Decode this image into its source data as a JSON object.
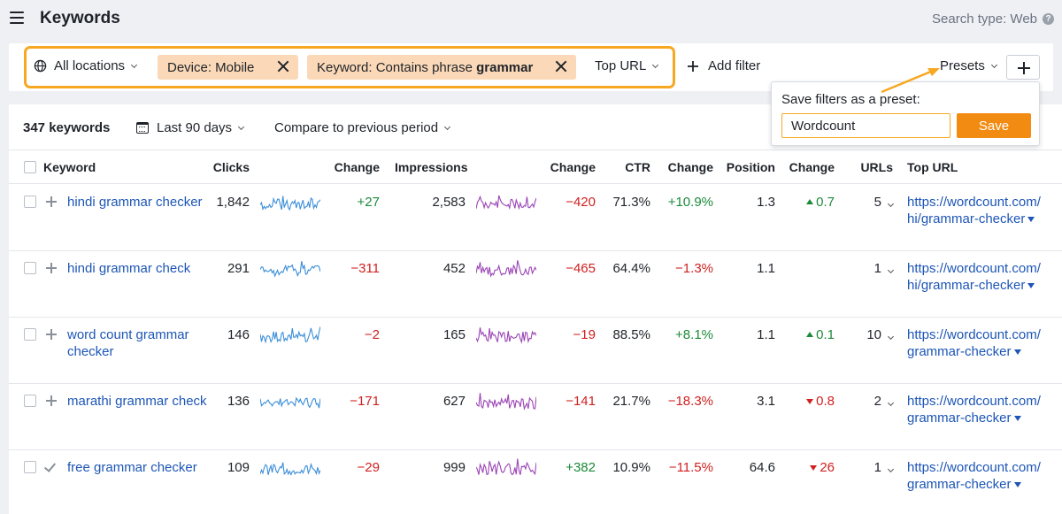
{
  "header": {
    "title": "Keywords",
    "search_type": "Search type: Web",
    "help": "?"
  },
  "filters": {
    "location": "All locations",
    "chip_device": "Device: Mobile",
    "chip_keyword_prefix": "Keyword: Contains phrase ",
    "chip_keyword_term": "grammar",
    "top_url": "Top URL",
    "add_filter": "Add filter",
    "presets": "Presets"
  },
  "summary": {
    "count": "347 keywords",
    "date_range": "Last 90 days",
    "compare": "Compare to previous period"
  },
  "columns": {
    "keyword": "Keyword",
    "clicks": "Clicks",
    "change1": "Change",
    "impressions": "Impressions",
    "change2": "Change",
    "ctr": "CTR",
    "change3": "Change",
    "position": "Position",
    "change4": "Change",
    "urls": "URLs",
    "top_url": "Top URL"
  },
  "rows": [
    {
      "keyword": "hindi grammar checker",
      "clicks": "1,842",
      "clicks_change": "+27",
      "impressions": "2,583",
      "impr_change": "−420",
      "ctr": "71.3%",
      "ctr_change": "+10.9%",
      "position": "1.3",
      "pos_change": "0.7",
      "pos_dir": "up",
      "urls": "5",
      "url": "https://wordcount.com/hi/grammar-checker",
      "checked": false
    },
    {
      "keyword": "hindi grammar check",
      "clicks": "291",
      "clicks_change": "−311",
      "impressions": "452",
      "impr_change": "−465",
      "ctr": "64.4%",
      "ctr_change": "−1.3%",
      "position": "1.1",
      "pos_change": "",
      "pos_dir": "none",
      "urls": "1",
      "url": "https://wordcount.com/hi/grammar-checker",
      "checked": false
    },
    {
      "keyword": "word count grammar checker",
      "clicks": "146",
      "clicks_change": "−2",
      "impressions": "165",
      "impr_change": "−19",
      "ctr": "88.5%",
      "ctr_change": "+8.1%",
      "position": "1.1",
      "pos_change": "0.1",
      "pos_dir": "up",
      "urls": "10",
      "url": "https://wordcount.com/grammar-checker",
      "checked": false
    },
    {
      "keyword": "marathi grammar check",
      "clicks": "136",
      "clicks_change": "−171",
      "impressions": "627",
      "impr_change": "−141",
      "ctr": "21.7%",
      "ctr_change": "−18.3%",
      "position": "3.1",
      "pos_change": "0.8",
      "pos_dir": "down",
      "urls": "2",
      "url": "https://wordcount.com/grammar-checker",
      "checked": false
    },
    {
      "keyword": "free grammar checker",
      "clicks": "109",
      "clicks_change": "−29",
      "impressions": "999",
      "impr_change": "+382",
      "ctr": "10.9%",
      "ctr_change": "−11.5%",
      "position": "64.6",
      "pos_change": "26",
      "pos_dir": "down",
      "urls": "1",
      "url": "https://wordcount.com/grammar-checker",
      "checked": true
    }
  ],
  "preset_popup": {
    "label": "Save filters as a preset:",
    "value": "Wordcount",
    "save": "Save"
  },
  "colors": {
    "accent_orange": "#f7a823",
    "chip_bg": "#fbd9b8",
    "link": "#1d56b6",
    "positive": "#1c8a3a",
    "negative": "#d02020",
    "clicks_spark": "#3b8ed8",
    "impr_spark": "#9b44b6"
  }
}
